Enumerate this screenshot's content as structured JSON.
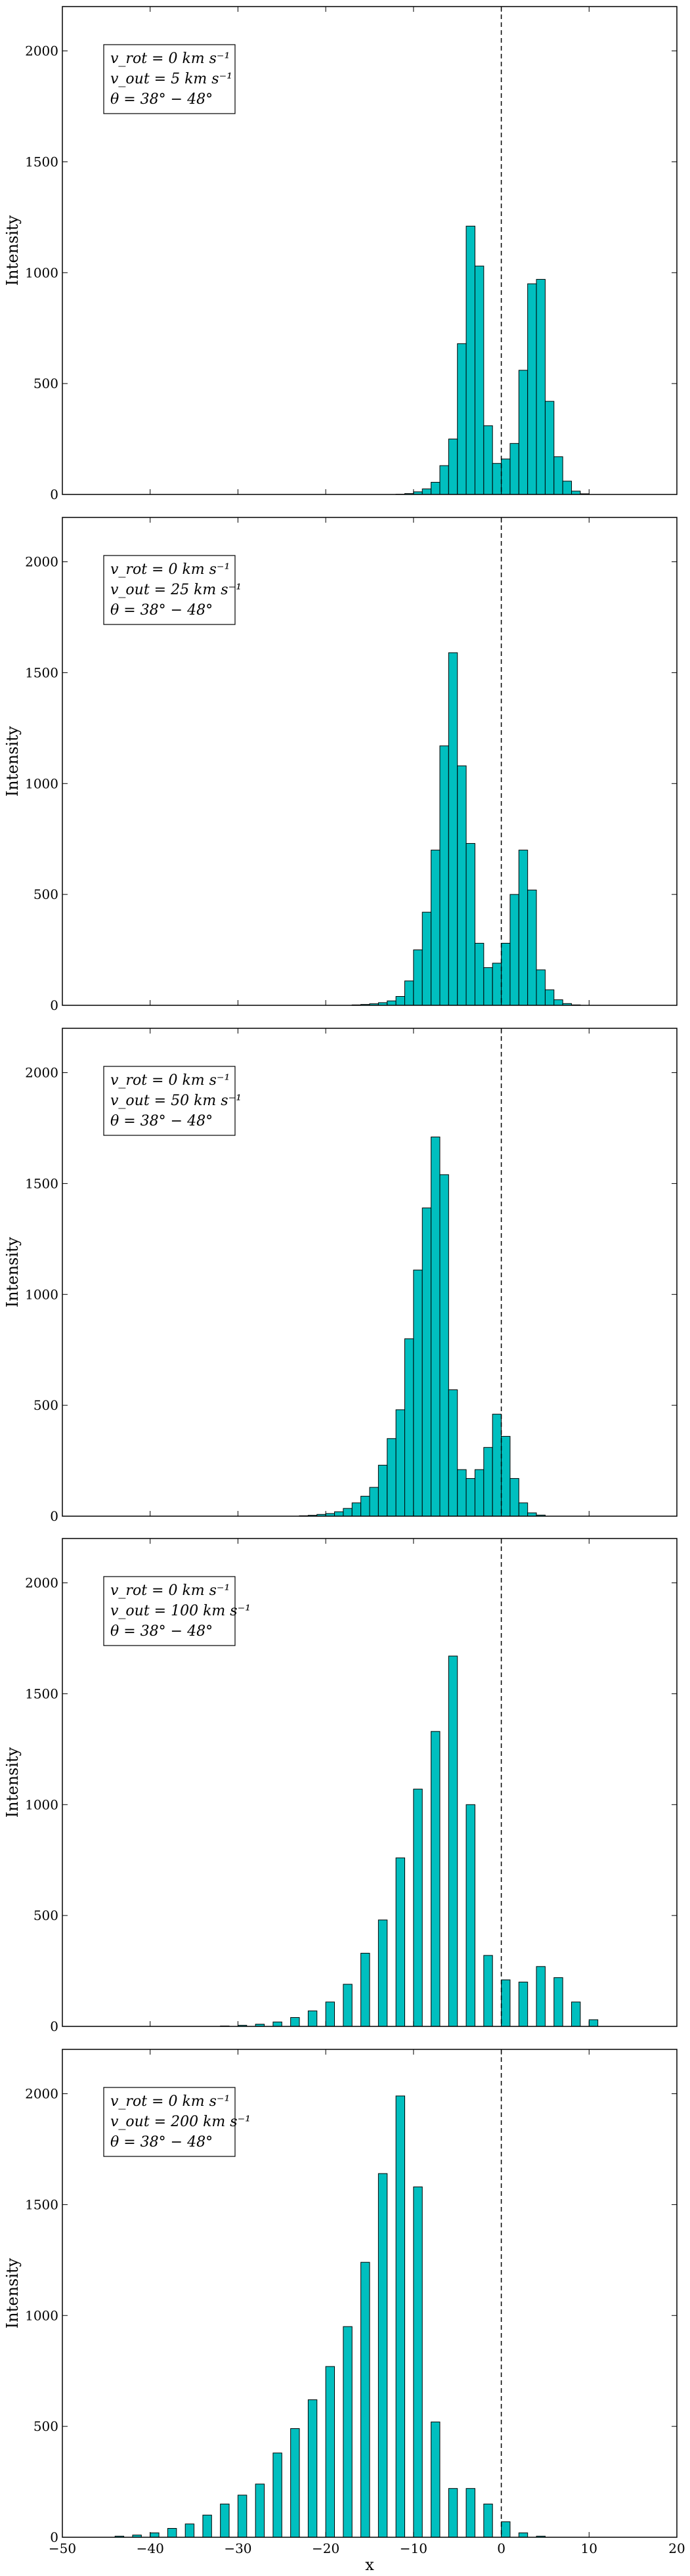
{
  "figure": {
    "xlabel": "x",
    "fill_color": "#00bfbf",
    "edge_color": "#000000",
    "bar_width": 1.0
  },
  "chart_data": [
    {
      "type": "bar",
      "xlim": [
        -50,
        20
      ],
      "ylim": [
        0,
        2200
      ],
      "yticks": [
        0,
        500,
        1000,
        1500,
        2000
      ],
      "ylabel": "Intensity",
      "vline_x": 0,
      "annotation": [
        "v_rot = 0 km s⁻¹",
        "v_out = 5 km s⁻¹",
        "θ = 38° − 48°"
      ],
      "bars": [
        {
          "x": -12,
          "y": 1
        },
        {
          "x": -11,
          "y": 4
        },
        {
          "x": -10,
          "y": 12
        },
        {
          "x": -9,
          "y": 25
        },
        {
          "x": -8,
          "y": 55
        },
        {
          "x": -7,
          "y": 130
        },
        {
          "x": -6,
          "y": 250
        },
        {
          "x": -5,
          "y": 680
        },
        {
          "x": -4,
          "y": 1210
        },
        {
          "x": -3,
          "y": 1030
        },
        {
          "x": -2,
          "y": 310
        },
        {
          "x": -1,
          "y": 140
        },
        {
          "x": 0,
          "y": 160
        },
        {
          "x": 1,
          "y": 230
        },
        {
          "x": 2,
          "y": 560
        },
        {
          "x": 3,
          "y": 950
        },
        {
          "x": 4,
          "y": 970
        },
        {
          "x": 5,
          "y": 420
        },
        {
          "x": 6,
          "y": 170
        },
        {
          "x": 7,
          "y": 60
        },
        {
          "x": 8,
          "y": 15
        },
        {
          "x": 9,
          "y": 3
        }
      ]
    },
    {
      "type": "bar",
      "xlim": [
        -50,
        20
      ],
      "ylim": [
        0,
        2200
      ],
      "yticks": [
        0,
        500,
        1000,
        1500,
        2000
      ],
      "ylabel": "Intensity",
      "vline_x": 0,
      "annotation": [
        "v_rot = 0 km s⁻¹",
        "v_out = 25 km s⁻¹",
        "θ = 38° − 48°"
      ],
      "bars": [
        {
          "x": -17,
          "y": 2
        },
        {
          "x": -16,
          "y": 4
        },
        {
          "x": -15,
          "y": 7
        },
        {
          "x": -14,
          "y": 12
        },
        {
          "x": -13,
          "y": 20
        },
        {
          "x": -12,
          "y": 40
        },
        {
          "x": -11,
          "y": 110
        },
        {
          "x": -10,
          "y": 250
        },
        {
          "x": -9,
          "y": 420
        },
        {
          "x": -8,
          "y": 700
        },
        {
          "x": -7,
          "y": 1170
        },
        {
          "x": -6,
          "y": 1590
        },
        {
          "x": -5,
          "y": 1080
        },
        {
          "x": -4,
          "y": 730
        },
        {
          "x": -3,
          "y": 280
        },
        {
          "x": -2,
          "y": 170
        },
        {
          "x": -1,
          "y": 190
        },
        {
          "x": 0,
          "y": 280
        },
        {
          "x": 1,
          "y": 500
        },
        {
          "x": 2,
          "y": 700
        },
        {
          "x": 3,
          "y": 520
        },
        {
          "x": 4,
          "y": 160
        },
        {
          "x": 5,
          "y": 70
        },
        {
          "x": 6,
          "y": 25
        },
        {
          "x": 7,
          "y": 8
        },
        {
          "x": 8,
          "y": 2
        }
      ]
    },
    {
      "type": "bar",
      "xlim": [
        -50,
        20
      ],
      "ylim": [
        0,
        2200
      ],
      "yticks": [
        0,
        500,
        1000,
        1500,
        2000
      ],
      "ylabel": "Intensity",
      "vline_x": 0,
      "annotation": [
        "v_rot = 0 km s⁻¹",
        "v_out = 50 km s⁻¹",
        "θ = 38° − 48°"
      ],
      "bars": [
        {
          "x": -23,
          "y": 2
        },
        {
          "x": -22,
          "y": 4
        },
        {
          "x": -21,
          "y": 8
        },
        {
          "x": -20,
          "y": 12
        },
        {
          "x": -19,
          "y": 20
        },
        {
          "x": -18,
          "y": 35
        },
        {
          "x": -17,
          "y": 60
        },
        {
          "x": -16,
          "y": 90
        },
        {
          "x": -15,
          "y": 130
        },
        {
          "x": -14,
          "y": 230
        },
        {
          "x": -13,
          "y": 350
        },
        {
          "x": -12,
          "y": 480
        },
        {
          "x": -11,
          "y": 800
        },
        {
          "x": -10,
          "y": 1110
        },
        {
          "x": -9,
          "y": 1390
        },
        {
          "x": -8,
          "y": 1710
        },
        {
          "x": -7,
          "y": 1540
        },
        {
          "x": -6,
          "y": 570
        },
        {
          "x": -5,
          "y": 210
        },
        {
          "x": -4,
          "y": 170
        },
        {
          "x": -3,
          "y": 210
        },
        {
          "x": -2,
          "y": 310
        },
        {
          "x": -1,
          "y": 460
        },
        {
          "x": 0,
          "y": 360
        },
        {
          "x": 1,
          "y": 170
        },
        {
          "x": 2,
          "y": 60
        },
        {
          "x": 3,
          "y": 15
        },
        {
          "x": 4,
          "y": 5
        }
      ]
    },
    {
      "type": "bar",
      "xlim": [
        -50,
        20
      ],
      "ylim": [
        0,
        2200
      ],
      "yticks": [
        0,
        500,
        1000,
        1500,
        2000
      ],
      "ylabel": "Intensity",
      "vline_x": 0,
      "annotation": [
        "v_rot = 0 km s⁻¹",
        "v_out = 100 km s⁻¹",
        "θ = 38° − 48°"
      ],
      "bars": [
        {
          "x": -32,
          "y": 2
        },
        {
          "x": -30,
          "y": 5
        },
        {
          "x": -28,
          "y": 10
        },
        {
          "x": -26,
          "y": 20
        },
        {
          "x": -24,
          "y": 40
        },
        {
          "x": -22,
          "y": 70
        },
        {
          "x": -20,
          "y": 110
        },
        {
          "x": -18,
          "y": 190
        },
        {
          "x": -16,
          "y": 330
        },
        {
          "x": -14,
          "y": 480
        },
        {
          "x": -12,
          "y": 760
        },
        {
          "x": -10,
          "y": 1070
        },
        {
          "x": -8,
          "y": 1330
        },
        {
          "x": -6,
          "y": 1670
        },
        {
          "x": -4,
          "y": 1000
        },
        {
          "x": -2,
          "y": 320
        },
        {
          "x": 0,
          "y": 210
        },
        {
          "x": 2,
          "y": 200
        },
        {
          "x": 4,
          "y": 270
        },
        {
          "x": 6,
          "y": 220
        },
        {
          "x": 8,
          "y": 110
        },
        {
          "x": 10,
          "y": 30
        }
      ]
    },
    {
      "type": "bar",
      "xlim": [
        -50,
        20
      ],
      "ylim": [
        0,
        2200
      ],
      "yticks": [
        0,
        500,
        1000,
        1500,
        2000
      ],
      "ylabel": "Intensity",
      "vline_x": 0,
      "annotation": [
        "v_rot = 0 km s⁻¹",
        "v_out = 200 km s⁻¹",
        "θ = 38° − 48°"
      ],
      "xticks": [
        -50,
        -40,
        -30,
        -20,
        -10,
        0,
        10,
        20
      ],
      "bars": [
        {
          "x": -44,
          "y": 5
        },
        {
          "x": -42,
          "y": 10
        },
        {
          "x": -40,
          "y": 20
        },
        {
          "x": -38,
          "y": 40
        },
        {
          "x": -36,
          "y": 60
        },
        {
          "x": -34,
          "y": 100
        },
        {
          "x": -32,
          "y": 150
        },
        {
          "x": -30,
          "y": 190
        },
        {
          "x": -28,
          "y": 240
        },
        {
          "x": -26,
          "y": 380
        },
        {
          "x": -24,
          "y": 490
        },
        {
          "x": -22,
          "y": 620
        },
        {
          "x": -20,
          "y": 770
        },
        {
          "x": -18,
          "y": 950
        },
        {
          "x": -16,
          "y": 1240
        },
        {
          "x": -14,
          "y": 1640
        },
        {
          "x": -12,
          "y": 1990
        },
        {
          "x": -10,
          "y": 1580
        },
        {
          "x": -8,
          "y": 520
        },
        {
          "x": -6,
          "y": 220
        },
        {
          "x": -4,
          "y": 220
        },
        {
          "x": -2,
          "y": 150
        },
        {
          "x": 0,
          "y": 70
        },
        {
          "x": 2,
          "y": 20
        },
        {
          "x": 4,
          "y": 5
        }
      ]
    }
  ]
}
